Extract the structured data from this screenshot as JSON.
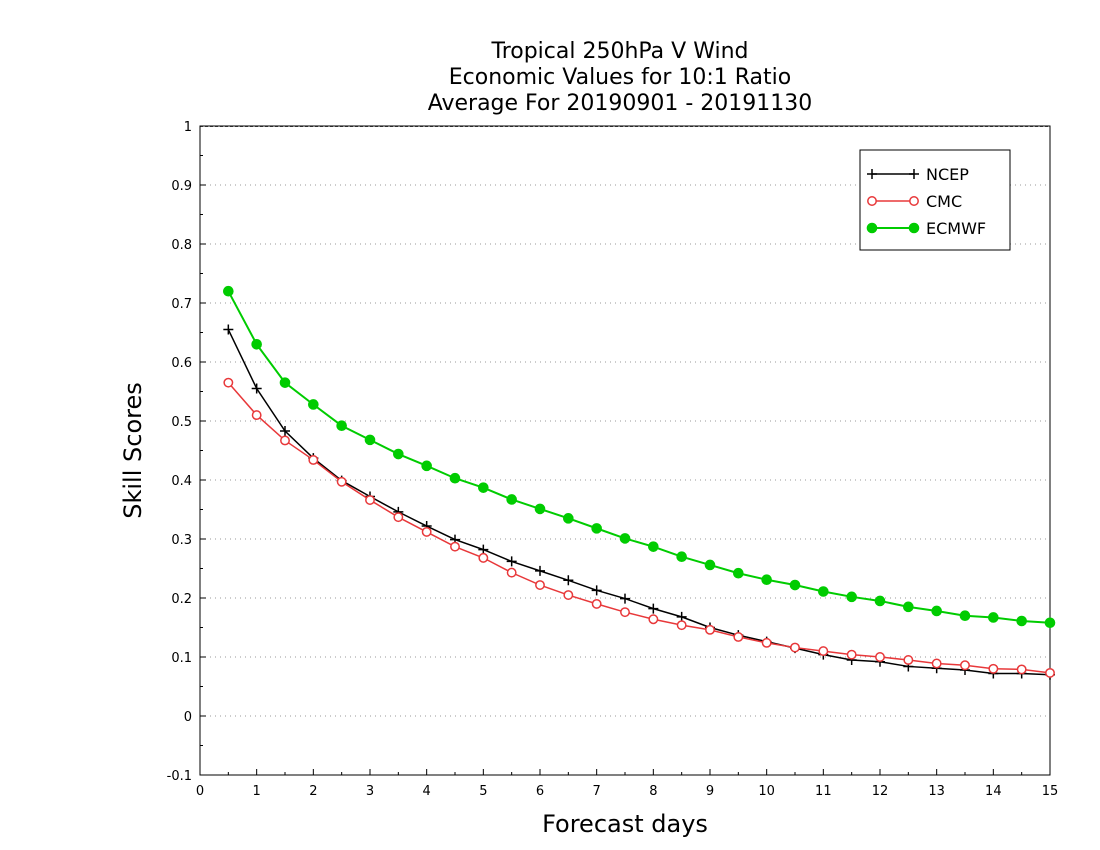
{
  "chart_data": {
    "type": "line",
    "title": [
      "Tropical 250hPa V Wind",
      "Economic Values for 10:1 Ratio",
      "Average For 20190901 - 20191130"
    ],
    "xlabel": "Forecast days",
    "ylabel": "Skill Scores",
    "xlim": [
      0,
      15
    ],
    "ylim": [
      -0.1,
      1
    ],
    "xticks": [
      0,
      1,
      2,
      3,
      4,
      5,
      6,
      7,
      8,
      9,
      10,
      11,
      12,
      13,
      14,
      15
    ],
    "yticks": [
      -0.1,
      0,
      0.1,
      0.2,
      0.3,
      0.4,
      0.5,
      0.6,
      0.7,
      0.8,
      0.9,
      1
    ],
    "ytick_labels": [
      "-0.1",
      "0",
      "0.1",
      "0.2",
      "0.3",
      "0.4",
      "0.5",
      "0.6",
      "0.7",
      "0.8",
      "0.9",
      "1"
    ],
    "grid": "horizontal dotted",
    "legend_position": "top-right",
    "x": [
      0.5,
      1.0,
      1.5,
      2.0,
      2.5,
      3.0,
      3.5,
      4.0,
      4.5,
      5.0,
      5.5,
      6.0,
      6.5,
      7.0,
      7.5,
      8.0,
      8.5,
      9.0,
      9.5,
      10.0,
      10.5,
      11.0,
      11.5,
      12.0,
      12.5,
      13.0,
      13.5,
      14.0,
      14.5,
      15.0
    ],
    "series": [
      {
        "name": "NCEP",
        "color": "#000000",
        "marker": "plus",
        "values": [
          0.655,
          0.555,
          0.483,
          0.437,
          0.399,
          0.372,
          0.346,
          0.322,
          0.299,
          0.282,
          0.262,
          0.246,
          0.23,
          0.213,
          0.199,
          0.182,
          0.168,
          0.15,
          0.137,
          0.126,
          0.115,
          0.104,
          0.095,
          0.092,
          0.084,
          0.081,
          0.078,
          0.072,
          0.072,
          0.07
        ]
      },
      {
        "name": "CMC",
        "color": "#e8383a",
        "marker": "open-circle",
        "values": [
          0.565,
          0.51,
          0.467,
          0.434,
          0.397,
          0.366,
          0.337,
          0.312,
          0.287,
          0.268,
          0.243,
          0.222,
          0.205,
          0.19,
          0.176,
          0.164,
          0.154,
          0.146,
          0.134,
          0.124,
          0.116,
          0.11,
          0.104,
          0.1,
          0.095,
          0.089,
          0.086,
          0.08,
          0.079,
          0.073
        ]
      },
      {
        "name": "ECMWF",
        "color": "#00cc00",
        "marker": "filled-circle",
        "values": [
          0.72,
          0.63,
          0.565,
          0.528,
          0.492,
          0.468,
          0.444,
          0.424,
          0.403,
          0.387,
          0.367,
          0.351,
          0.335,
          0.318,
          0.301,
          0.287,
          0.27,
          0.256,
          0.242,
          0.231,
          0.222,
          0.211,
          0.202,
          0.195,
          0.185,
          0.178,
          0.17,
          0.167,
          0.161,
          0.158
        ]
      }
    ]
  }
}
